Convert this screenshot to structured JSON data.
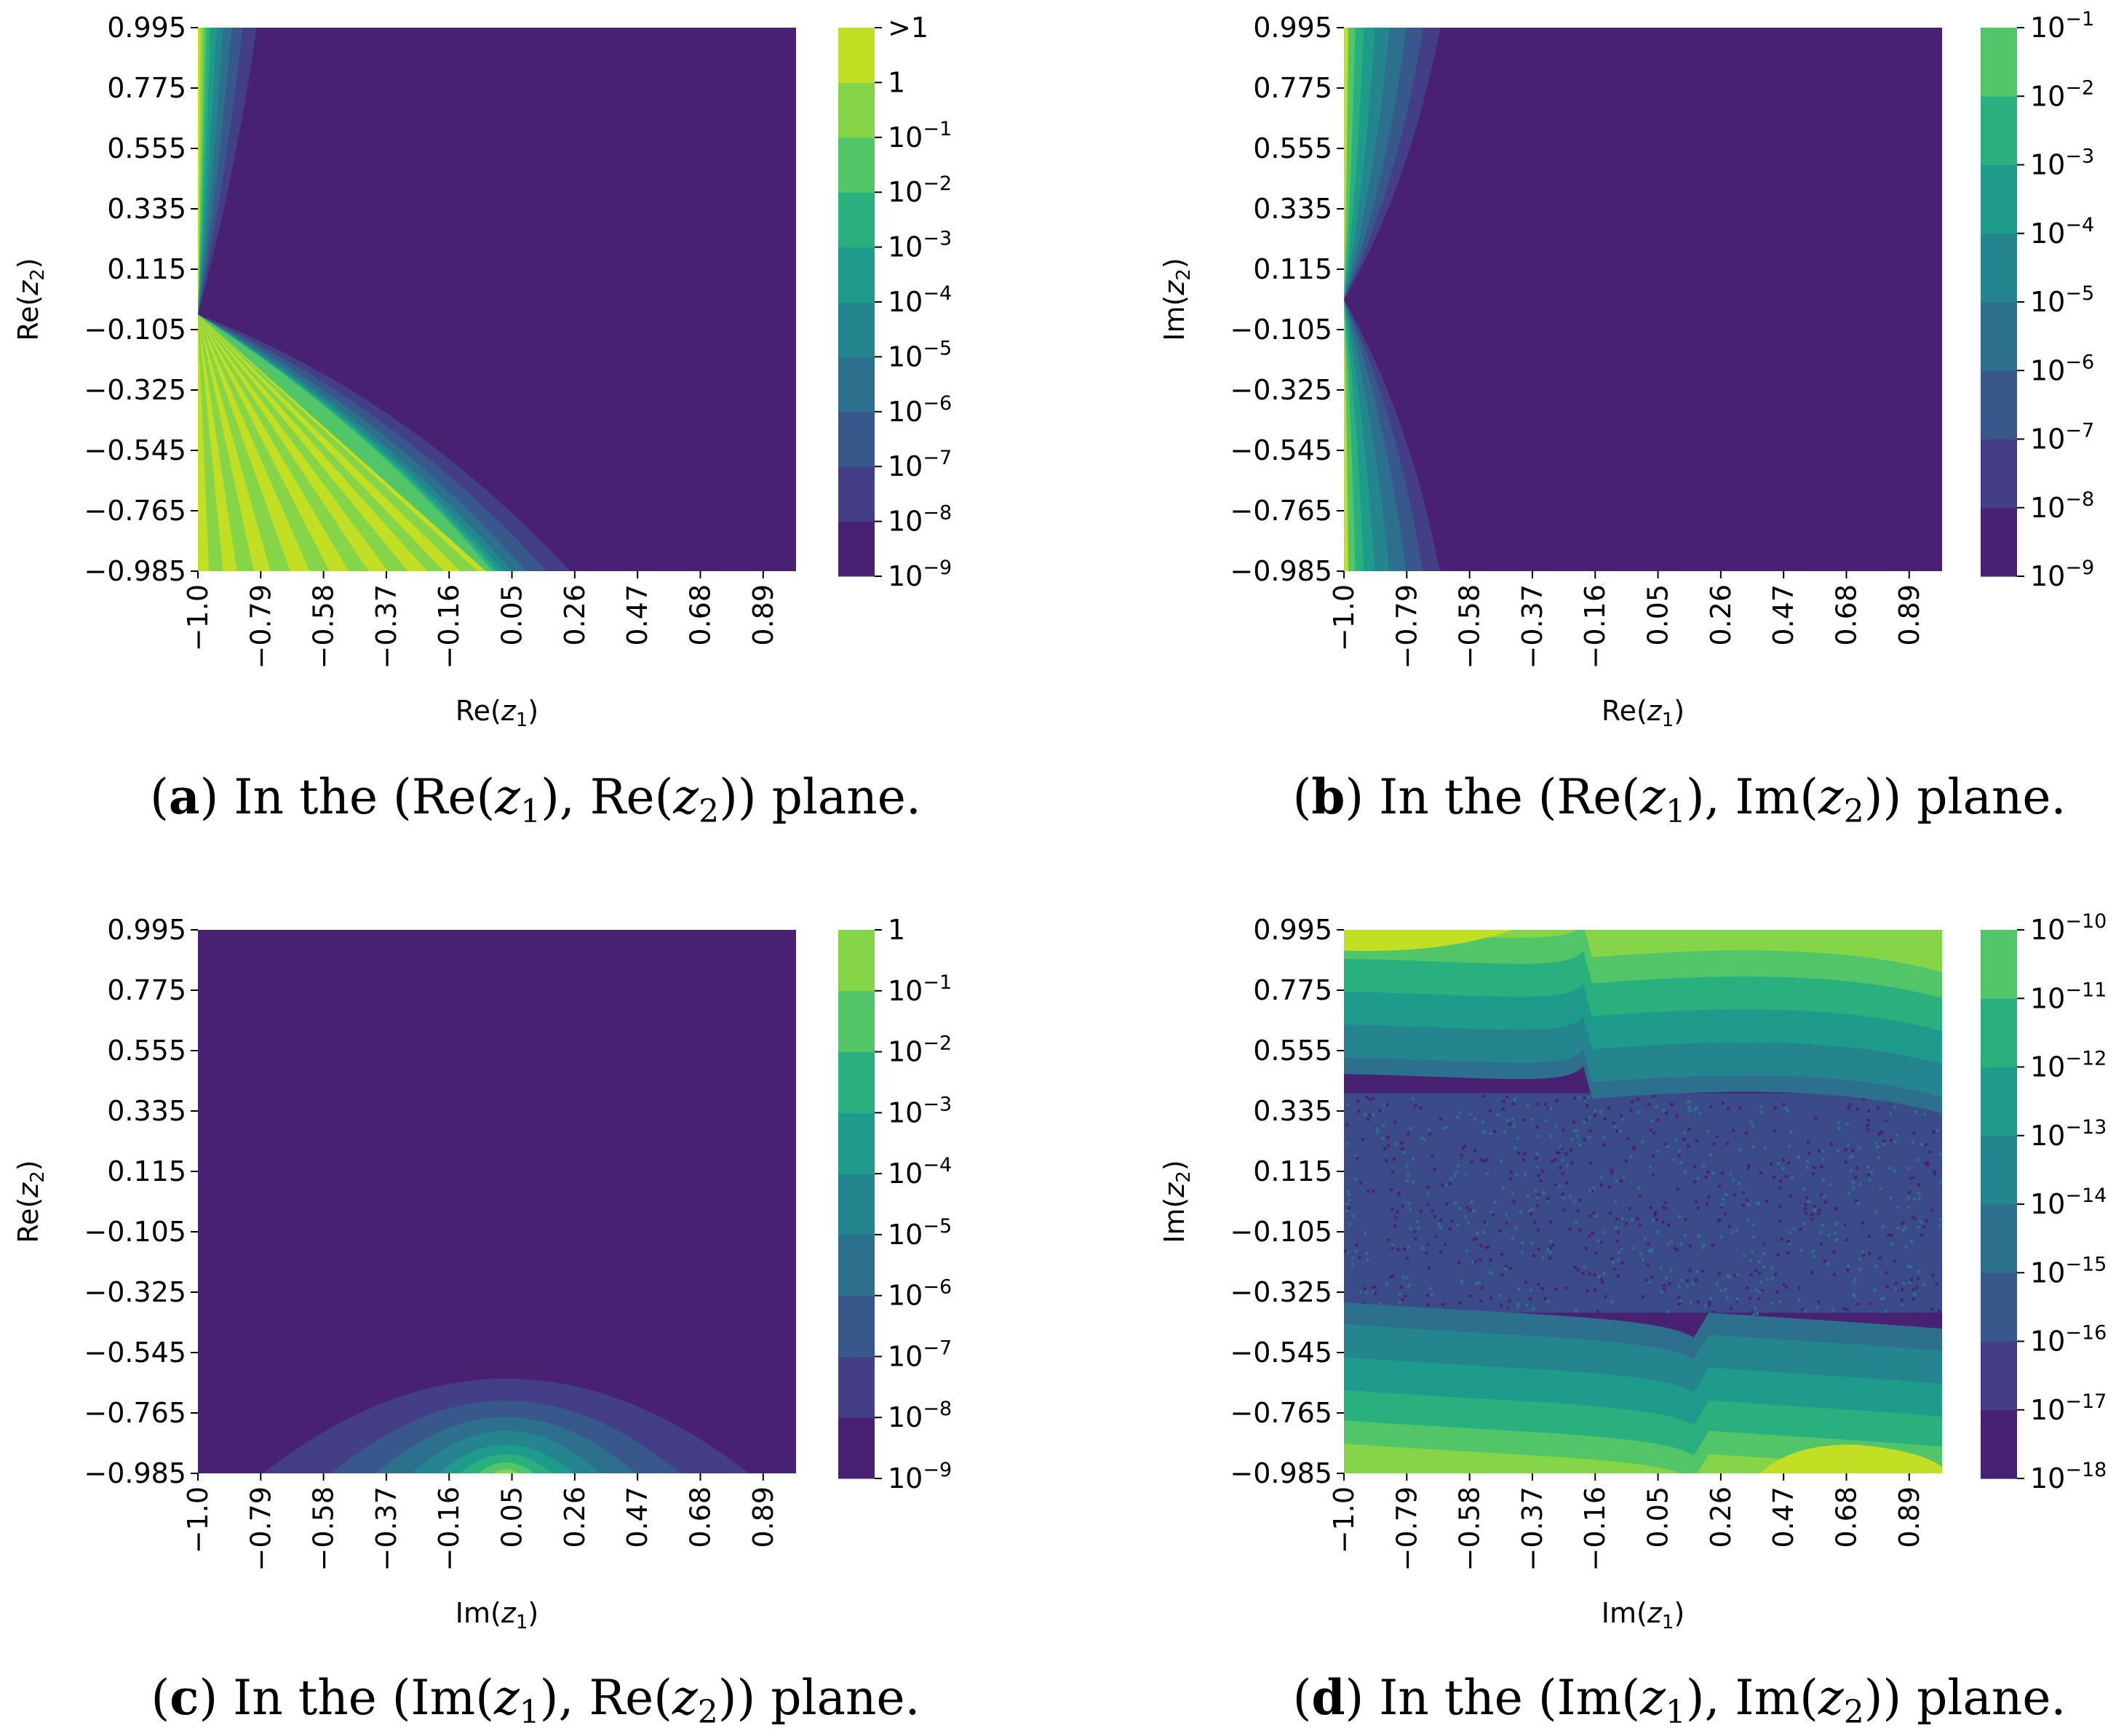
{
  "chart_data": [
    {
      "id": "a",
      "type": "heatmap",
      "xlabel": "Re(z1)",
      "ylabel": "Re(z2)",
      "xlabel_main": "Re",
      "xlabel_sub": "1",
      "ylabel_main": "Re",
      "ylabel_sub": "2",
      "x_ticks": [
        "−1.0",
        "−0.79",
        "−0.58",
        "−0.37",
        "−0.16",
        "0.05",
        "0.26",
        "0.47",
        "0.68",
        "0.89"
      ],
      "y_ticks": [
        "0.995",
        "0.775",
        "0.555",
        "0.335",
        "0.115",
        "−0.105",
        "−0.325",
        "−0.545",
        "−0.765",
        "−0.985"
      ],
      "xlim": [
        -1.0,
        1.0
      ],
      "ylim": [
        -0.985,
        0.995
      ],
      "colorbar": {
        "levels": [
          {
            "base": "10",
            "exp": "−9",
            "color": "#482173"
          },
          {
            "base": "10",
            "exp": "−8",
            "color": "#433e85"
          },
          {
            "base": "10",
            "exp": "−7",
            "color": "#38588c"
          },
          {
            "base": "10",
            "exp": "−6",
            "color": "#2d708e"
          },
          {
            "base": "10",
            "exp": "−5",
            "color": "#25858e"
          },
          {
            "base": "10",
            "exp": "−4",
            "color": "#1e9b8a"
          },
          {
            "base": "10",
            "exp": "−3",
            "color": "#2ab07f"
          },
          {
            "base": "10",
            "exp": "−2",
            "color": "#52c569"
          },
          {
            "base": "10",
            "exp": "−1",
            "color": "#86d549"
          },
          {
            "base": "1",
            "exp": "",
            "color": "#c2df23"
          },
          {
            "base": ">1",
            "exp": "",
            "color": "#c2df23"
          }
        ]
      },
      "caption": {
        "letter": "a",
        "pre": " In the (",
        "v1": "Re",
        "s1": "1",
        "v2": "Re",
        "s2": "2",
        "post": ")) plane."
      }
    },
    {
      "id": "b",
      "type": "heatmap",
      "xlabel": "Re(z1)",
      "ylabel": "Im(z2)",
      "xlabel_main": "Re",
      "xlabel_sub": "1",
      "ylabel_main": "Im",
      "ylabel_sub": "2",
      "x_ticks": [
        "−1.0",
        "−0.79",
        "−0.58",
        "−0.37",
        "−0.16",
        "0.05",
        "0.26",
        "0.47",
        "0.68",
        "0.89"
      ],
      "y_ticks": [
        "0.995",
        "0.775",
        "0.555",
        "0.335",
        "0.115",
        "−0.105",
        "−0.325",
        "−0.545",
        "−0.765",
        "−0.985"
      ],
      "xlim": [
        -1.0,
        1.0
      ],
      "ylim": [
        -0.985,
        0.995
      ],
      "colorbar": {
        "levels": [
          {
            "base": "10",
            "exp": "−9",
            "color": "#482173"
          },
          {
            "base": "10",
            "exp": "−8",
            "color": "#433e85"
          },
          {
            "base": "10",
            "exp": "−7",
            "color": "#38588c"
          },
          {
            "base": "10",
            "exp": "−6",
            "color": "#2d708e"
          },
          {
            "base": "10",
            "exp": "−5",
            "color": "#25858e"
          },
          {
            "base": "10",
            "exp": "−4",
            "color": "#1e9b8a"
          },
          {
            "base": "10",
            "exp": "−3",
            "color": "#2ab07f"
          },
          {
            "base": "10",
            "exp": "−2",
            "color": "#52c569"
          },
          {
            "base": "10",
            "exp": "−1",
            "color": "#c2df23"
          }
        ]
      },
      "caption": {
        "letter": "b",
        "pre": " In the (",
        "v1": "Re",
        "s1": "1",
        "v2": "Im",
        "s2": "2",
        "post": ")) plane."
      }
    },
    {
      "id": "c",
      "type": "heatmap",
      "xlabel": "Im(z1)",
      "ylabel": "Re(z2)",
      "xlabel_main": "Im",
      "xlabel_sub": "1",
      "ylabel_main": "Re",
      "ylabel_sub": "2",
      "x_ticks": [
        "−1.0",
        "−0.79",
        "−0.58",
        "−0.37",
        "−0.16",
        "0.05",
        "0.26",
        "0.47",
        "0.68",
        "0.89"
      ],
      "y_ticks": [
        "0.995",
        "0.775",
        "0.555",
        "0.335",
        "0.115",
        "−0.105",
        "−0.325",
        "−0.545",
        "−0.765",
        "−0.985"
      ],
      "xlim": [
        -1.0,
        1.0
      ],
      "ylim": [
        -0.985,
        0.995
      ],
      "colorbar": {
        "levels": [
          {
            "base": "10",
            "exp": "−9",
            "color": "#482173"
          },
          {
            "base": "10",
            "exp": "−8",
            "color": "#433e85"
          },
          {
            "base": "10",
            "exp": "−7",
            "color": "#38588c"
          },
          {
            "base": "10",
            "exp": "−6",
            "color": "#2d708e"
          },
          {
            "base": "10",
            "exp": "−5",
            "color": "#25858e"
          },
          {
            "base": "10",
            "exp": "−4",
            "color": "#1e9b8a"
          },
          {
            "base": "10",
            "exp": "−3",
            "color": "#2ab07f"
          },
          {
            "base": "10",
            "exp": "−2",
            "color": "#52c569"
          },
          {
            "base": "10",
            "exp": "−1",
            "color": "#86d549"
          },
          {
            "base": "1",
            "exp": "",
            "color": "#c2df23"
          }
        ]
      },
      "caption": {
        "letter": "c",
        "pre": " In the (",
        "v1": "Im",
        "s1": "1",
        "v2": "Re",
        "s2": "2",
        "post": ")) plane."
      }
    },
    {
      "id": "d",
      "type": "heatmap",
      "xlabel": "Im(z1)",
      "ylabel": "Im(z2)",
      "xlabel_main": "Im",
      "xlabel_sub": "1",
      "ylabel_main": "Im",
      "ylabel_sub": "2",
      "x_ticks": [
        "−1.0",
        "−0.79",
        "−0.58",
        "−0.37",
        "−0.16",
        "0.05",
        "0.26",
        "0.47",
        "0.68",
        "0.89"
      ],
      "y_ticks": [
        "0.995",
        "0.775",
        "0.555",
        "0.335",
        "0.115",
        "−0.105",
        "−0.325",
        "−0.545",
        "−0.765",
        "−0.985"
      ],
      "xlim": [
        -1.0,
        1.0
      ],
      "ylim": [
        -0.985,
        0.995
      ],
      "colorbar": {
        "levels": [
          {
            "base": "10",
            "exp": "−18",
            "color": "#482173"
          },
          {
            "base": "10",
            "exp": "−17",
            "color": "#433e85"
          },
          {
            "base": "10",
            "exp": "−16",
            "color": "#38588c"
          },
          {
            "base": "10",
            "exp": "−15",
            "color": "#2d708e"
          },
          {
            "base": "10",
            "exp": "−14",
            "color": "#25858e"
          },
          {
            "base": "10",
            "exp": "−13",
            "color": "#1e9b8a"
          },
          {
            "base": "10",
            "exp": "−12",
            "color": "#2ab07f"
          },
          {
            "base": "10",
            "exp": "−11",
            "color": "#52c569"
          },
          {
            "base": "10",
            "exp": "−10",
            "color": "#c2df23"
          }
        ]
      },
      "caption": {
        "letter": "d",
        "pre": " In the (",
        "v1": "Im",
        "s1": "1",
        "v2": "Im",
        "s2": "2",
        "post": ")) plane."
      }
    }
  ]
}
